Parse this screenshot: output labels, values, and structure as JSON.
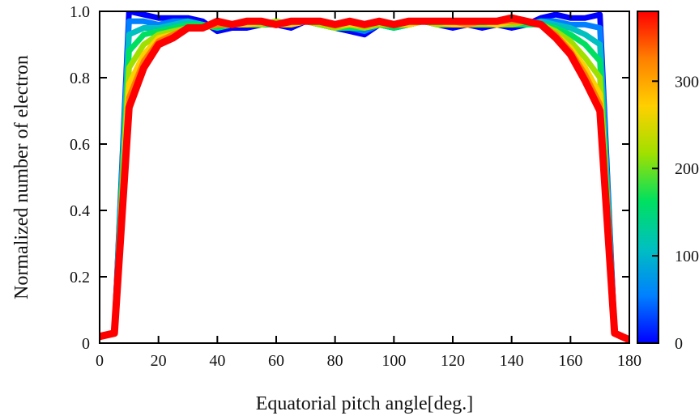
{
  "chart_data": {
    "type": "line",
    "title": "",
    "xlabel": "Equatorial pitch angle[deg.]",
    "ylabel": "Normalized number of electron",
    "xlim": [
      0,
      180
    ],
    "ylim": [
      0,
      1.0
    ],
    "xticks": [
      "0",
      "20",
      "40",
      "60",
      "80",
      "100",
      "120",
      "140",
      "160",
      "180"
    ],
    "yticks": [
      "0",
      "0.2",
      "0.4",
      "0.6",
      "0.8",
      "1.0"
    ],
    "grid": false,
    "legend": "none",
    "colorbar": {
      "min": 0,
      "max": 380,
      "ticks": [
        "0",
        "100",
        "200",
        "300"
      ],
      "colormap": [
        "#0000ff",
        "#0080ff",
        "#00c0c0",
        "#00e060",
        "#a0e000",
        "#ffd000",
        "#ff8000",
        "#ff0000"
      ]
    },
    "x": [
      0,
      5,
      10,
      15,
      20,
      25,
      30,
      35,
      40,
      45,
      50,
      55,
      60,
      65,
      70,
      75,
      80,
      85,
      90,
      95,
      100,
      105,
      110,
      115,
      120,
      125,
      130,
      135,
      140,
      145,
      150,
      155,
      160,
      165,
      170,
      175,
      180
    ],
    "series": [
      {
        "values": [
          0.02,
          0.03,
          1.0,
          0.99,
          0.98,
          0.98,
          0.98,
          0.97,
          0.94,
          0.95,
          0.95,
          0.96,
          0.96,
          0.95,
          0.97,
          0.96,
          0.95,
          0.94,
          0.93,
          0.96,
          0.95,
          0.96,
          0.97,
          0.96,
          0.95,
          0.96,
          0.95,
          0.96,
          0.95,
          0.96,
          0.98,
          0.99,
          0.98,
          0.98,
          0.99,
          0.03,
          0.01
        ]
      },
      {
        "values": [
          0.02,
          0.03,
          0.97,
          0.97,
          0.96,
          0.97,
          0.97,
          0.96,
          0.95,
          0.96,
          0.96,
          0.96,
          0.97,
          0.96,
          0.97,
          0.96,
          0.95,
          0.95,
          0.94,
          0.96,
          0.96,
          0.96,
          0.97,
          0.96,
          0.96,
          0.96,
          0.96,
          0.96,
          0.96,
          0.96,
          0.97,
          0.97,
          0.96,
          0.96,
          0.95,
          0.03,
          0.01
        ]
      },
      {
        "values": [
          0.02,
          0.03,
          0.93,
          0.95,
          0.95,
          0.96,
          0.97,
          0.96,
          0.95,
          0.96,
          0.96,
          0.96,
          0.97,
          0.96,
          0.97,
          0.96,
          0.95,
          0.95,
          0.95,
          0.96,
          0.96,
          0.96,
          0.97,
          0.96,
          0.96,
          0.96,
          0.96,
          0.96,
          0.96,
          0.96,
          0.97,
          0.96,
          0.95,
          0.93,
          0.9,
          0.03,
          0.01
        ]
      },
      {
        "values": [
          0.02,
          0.03,
          0.88,
          0.93,
          0.94,
          0.95,
          0.96,
          0.96,
          0.95,
          0.96,
          0.96,
          0.96,
          0.96,
          0.96,
          0.97,
          0.96,
          0.95,
          0.95,
          0.95,
          0.96,
          0.95,
          0.96,
          0.97,
          0.96,
          0.96,
          0.96,
          0.96,
          0.96,
          0.96,
          0.96,
          0.96,
          0.95,
          0.93,
          0.9,
          0.85,
          0.03,
          0.01
        ]
      },
      {
        "values": [
          0.02,
          0.03,
          0.83,
          0.9,
          0.93,
          0.94,
          0.95,
          0.95,
          0.96,
          0.96,
          0.96,
          0.96,
          0.97,
          0.96,
          0.97,
          0.96,
          0.95,
          0.96,
          0.95,
          0.96,
          0.96,
          0.96,
          0.97,
          0.96,
          0.96,
          0.96,
          0.96,
          0.96,
          0.96,
          0.97,
          0.96,
          0.94,
          0.91,
          0.86,
          0.8,
          0.03,
          0.01
        ]
      },
      {
        "values": [
          0.02,
          0.03,
          0.78,
          0.87,
          0.92,
          0.93,
          0.95,
          0.95,
          0.96,
          0.96,
          0.96,
          0.97,
          0.96,
          0.96,
          0.97,
          0.97,
          0.96,
          0.96,
          0.96,
          0.97,
          0.96,
          0.96,
          0.97,
          0.97,
          0.96,
          0.96,
          0.97,
          0.96,
          0.97,
          0.97,
          0.96,
          0.93,
          0.89,
          0.83,
          0.75,
          0.03,
          0.01
        ]
      },
      {
        "values": [
          0.02,
          0.03,
          0.74,
          0.85,
          0.91,
          0.93,
          0.95,
          0.95,
          0.96,
          0.96,
          0.97,
          0.97,
          0.96,
          0.97,
          0.97,
          0.97,
          0.96,
          0.97,
          0.96,
          0.97,
          0.96,
          0.97,
          0.97,
          0.97,
          0.97,
          0.96,
          0.97,
          0.97,
          0.97,
          0.97,
          0.96,
          0.93,
          0.88,
          0.81,
          0.72,
          0.03,
          0.01
        ]
      },
      {
        "values": [
          0.02,
          0.03,
          0.71,
          0.83,
          0.9,
          0.92,
          0.95,
          0.95,
          0.97,
          0.96,
          0.97,
          0.97,
          0.96,
          0.97,
          0.97,
          0.97,
          0.96,
          0.97,
          0.96,
          0.97,
          0.96,
          0.97,
          0.97,
          0.97,
          0.97,
          0.97,
          0.97,
          0.97,
          0.98,
          0.97,
          0.96,
          0.92,
          0.87,
          0.79,
          0.7,
          0.03,
          0.01
        ]
      }
    ]
  }
}
